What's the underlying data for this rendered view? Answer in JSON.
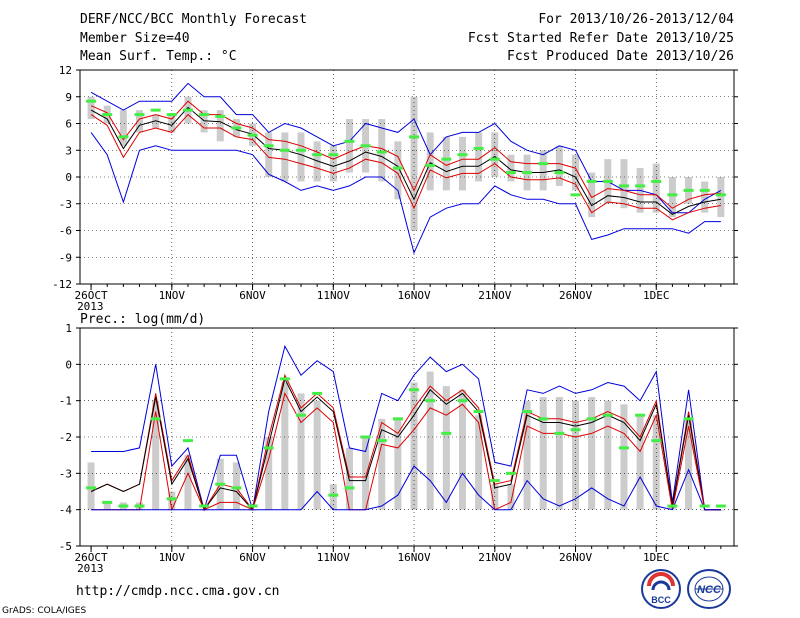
{
  "header": {
    "title": "DERF/NCC/BCC Monthly Forecast",
    "member_size": "Member Size=40",
    "variable": "Mean Surf. Temp.: °C",
    "period": "For 2013/10/26-2013/12/04",
    "started": "Fcst Started Refer Date 2013/10/25",
    "produced": "Fcst Produced Date 2013/10/26"
  },
  "footer": {
    "url": "http://cmdp.ncc.cma.gov.cn",
    "grads": "GrADS: COLA/IGES",
    "logo_left": "BCC",
    "logo_right": "NCC"
  },
  "colors": {
    "envelope": "#0000dd",
    "spread": "#dd0000",
    "mean": "#000000",
    "box": "#cccccc",
    "obs_marker": "#44ee44"
  },
  "chart_data": [
    {
      "type": "box",
      "title": "Mean Surf. Temp.: °C",
      "x_labels": [
        "26OCT",
        "1NOV",
        "6NOV",
        "11NOV",
        "16NOV",
        "21NOV",
        "26NOV",
        "1DEC"
      ],
      "x_label_index": [
        0,
        5,
        10,
        15,
        20,
        25,
        30,
        35
      ],
      "year_label": "2013",
      "ylim": [
        -12,
        12
      ],
      "yticks": [
        12,
        9,
        6,
        3,
        0,
        -3,
        -6,
        -9,
        -12
      ],
      "grid": true,
      "series": [
        {
          "name": "max",
          "values": [
            9.5,
            8.5,
            7.5,
            8.5,
            8.5,
            8.5,
            10.5,
            9,
            9,
            7,
            7,
            5,
            6,
            5.5,
            4.5,
            3.5,
            4,
            6,
            5.5,
            5,
            6.5,
            2.5,
            4.5,
            5,
            5,
            6,
            4,
            3,
            2.5,
            3.5,
            3,
            -0.5,
            -0.5,
            -1.5,
            -1.5,
            -2,
            -4,
            -4,
            -2.5,
            -1.5
          ]
        },
        {
          "name": "upper",
          "values": [
            8,
            7.2,
            4.2,
            6.5,
            7,
            6.5,
            8.5,
            7,
            7,
            6,
            5.5,
            4.2,
            4,
            3.5,
            2.8,
            2,
            2.8,
            3.5,
            3.2,
            2.3,
            -1.5,
            2.5,
            1.3,
            2,
            2,
            3.3,
            1.7,
            1.5,
            1.5,
            1.5,
            1,
            -2.3,
            -1.3,
            -1.5,
            -2,
            -2,
            -3.5,
            -2.5,
            -2,
            -1.8
          ]
        },
        {
          "name": "mean",
          "values": [
            7.5,
            6.5,
            3.2,
            5.8,
            6.3,
            5.8,
            7.8,
            6.3,
            6.2,
            5.3,
            4.8,
            3.2,
            3,
            2.5,
            1.8,
            1.2,
            1.8,
            2.8,
            2.3,
            1.2,
            -2.5,
            1.6,
            0.6,
            1.2,
            1.2,
            2.3,
            0.8,
            0.5,
            0.5,
            0.8,
            0,
            -3.2,
            -2.1,
            -2.3,
            -2.8,
            -2.8,
            -4.2,
            -3.3,
            -2.8,
            -2.5
          ]
        },
        {
          "name": "lower",
          "values": [
            7,
            5.8,
            2.2,
            5,
            5.5,
            5,
            7,
            5.5,
            5.5,
            4.5,
            4.2,
            2.2,
            2,
            1.5,
            1,
            0.4,
            1,
            2,
            1.6,
            0.4,
            -3.5,
            0.8,
            -0.1,
            0.4,
            0.4,
            1.5,
            0,
            -0.3,
            -0.3,
            -0.1,
            -0.8,
            -4,
            -2.8,
            -3,
            -3.5,
            -3.5,
            -4.8,
            -4,
            -3.5,
            -3.2
          ]
        },
        {
          "name": "min",
          "values": [
            5,
            2.5,
            -2.8,
            3,
            3.5,
            3,
            3,
            3,
            3,
            3,
            2.5,
            0.3,
            -0.5,
            -1.5,
            -1,
            -1.5,
            -1,
            0,
            0,
            -1.5,
            -8.5,
            -4.5,
            -3.5,
            -3,
            -3,
            -1,
            -2,
            -2.5,
            -2.5,
            -3,
            -3,
            -7,
            -6.5,
            -5.8,
            -5.8,
            -5.8,
            -5.8,
            -6.3,
            -5,
            -5
          ]
        },
        {
          "name": "observed",
          "values": [
            8.5,
            7,
            4.5,
            7,
            7.5,
            7,
            7.5,
            7,
            6.8,
            5.5,
            4.7,
            3.5,
            3,
            3,
            2.5,
            2.5,
            4,
            3.5,
            2.8,
            1,
            4.5,
            1.3,
            2,
            2.5,
            3.2,
            2,
            0.5,
            0.5,
            1.5,
            0.5,
            -2,
            -0.5,
            -0.5,
            -1,
            -1,
            -0.5,
            -2,
            -1.5,
            -1.5,
            -2
          ]
        }
      ],
      "boxes": [
        [
          6.5,
          9
        ],
        [
          6,
          8
        ],
        [
          3.5,
          7.5
        ],
        [
          5,
          7.5
        ],
        [
          5.5,
          7
        ],
        [
          5,
          7
        ],
        [
          6,
          9
        ],
        [
          5,
          7.5
        ],
        [
          4,
          7.5
        ],
        [
          4.5,
          6.5
        ],
        [
          3.5,
          6
        ],
        [
          0,
          5
        ],
        [
          -0.5,
          5
        ],
        [
          -0.5,
          5
        ],
        [
          -0.5,
          4
        ],
        [
          -0.5,
          3.5
        ],
        [
          0.5,
          6.5
        ],
        [
          0.5,
          6.5
        ],
        [
          -0.5,
          6.5
        ],
        [
          -2.5,
          4
        ],
        [
          -6,
          9
        ],
        [
          -1.5,
          5
        ],
        [
          -1.5,
          4.5
        ],
        [
          -1.5,
          4.5
        ],
        [
          -0.5,
          5
        ],
        [
          0,
          5
        ],
        [
          -0.5,
          2.5
        ],
        [
          -1.5,
          2.5
        ],
        [
          -1.5,
          3
        ],
        [
          -1,
          3.5
        ],
        [
          -1.5,
          2.5
        ],
        [
          -4.5,
          0.5
        ],
        [
          -3,
          2
        ],
        [
          -3.5,
          2
        ],
        [
          -4,
          1
        ],
        [
          -4,
          1.5
        ],
        [
          -4.5,
          0
        ],
        [
          -3,
          0
        ],
        [
          -4,
          -0.5
        ],
        [
          -4.5,
          0
        ]
      ]
    },
    {
      "type": "box",
      "title": "Prec.: log(mm/d)",
      "x_labels": [
        "26OCT",
        "1NOV",
        "6NOV",
        "11NOV",
        "16NOV",
        "21NOV",
        "26NOV",
        "1DEC"
      ],
      "x_label_index": [
        0,
        5,
        10,
        15,
        20,
        25,
        30,
        35
      ],
      "year_label": "2013",
      "ylim": [
        -5,
        1
      ],
      "yticks": [
        1,
        0,
        -1,
        -2,
        -3,
        -4,
        -5
      ],
      "grid": true,
      "series": [
        {
          "name": "max",
          "values": [
            -2.4,
            -2.4,
            -2.4,
            -2.3,
            0,
            -2.8,
            -2.3,
            -4,
            -2.5,
            -2.5,
            -4,
            -1.3,
            0.5,
            -0.3,
            0.1,
            -0.2,
            -2.3,
            -2.4,
            -0.8,
            -1,
            -0.3,
            0.2,
            -0.2,
            0,
            -0.4,
            -2.7,
            -2.8,
            -0.7,
            -0.8,
            -0.6,
            -0.8,
            -0.7,
            -0.5,
            -0.6,
            -1,
            -0.2,
            -3.8,
            -0.7,
            -4,
            -4
          ]
        },
        {
          "name": "upper",
          "values": [
            -3.5,
            -3.3,
            -3.5,
            -3.3,
            -0.8,
            -3.2,
            -2.5,
            -4,
            -3.3,
            -3.4,
            -4,
            -2,
            -0.3,
            -1.2,
            -0.8,
            -1.2,
            -3.1,
            -3.1,
            -1.6,
            -1.9,
            -1.2,
            -0.6,
            -1,
            -0.7,
            -1.2,
            -3.3,
            -3.2,
            -1.3,
            -1.5,
            -1.5,
            -1.6,
            -1.5,
            -1.3,
            -1.5,
            -2,
            -1,
            -3.9,
            -1.3,
            -4,
            -4
          ]
        },
        {
          "name": "mean",
          "values": [
            -3.5,
            -3.3,
            -3.5,
            -3.3,
            -0.9,
            -3.3,
            -2.6,
            -4,
            -3.4,
            -3.5,
            -4,
            -2.2,
            -0.4,
            -1.3,
            -0.9,
            -1.3,
            -3.2,
            -3.2,
            -1.8,
            -2,
            -1.4,
            -0.7,
            -1.1,
            -0.8,
            -1.3,
            -3.4,
            -3.3,
            -1.4,
            -1.6,
            -1.6,
            -1.7,
            -1.6,
            -1.4,
            -1.6,
            -2.1,
            -1.1,
            -3.9,
            -1.4,
            -4,
            -4
          ]
        },
        {
          "name": "lower",
          "values": [
            -4,
            -4,
            -4,
            -4,
            -1.3,
            -4,
            -3,
            -4,
            -3.8,
            -3.8,
            -4,
            -2.6,
            -0.8,
            -1.6,
            -1.2,
            -1.6,
            -4,
            -4,
            -2.2,
            -2.3,
            -1.8,
            -1.2,
            -1.4,
            -1.1,
            -1.6,
            -4,
            -3.8,
            -1.7,
            -1.9,
            -1.9,
            -2,
            -1.9,
            -1.7,
            -1.9,
            -2.4,
            -1.4,
            -4,
            -1.7,
            -4,
            -4
          ]
        },
        {
          "name": "min",
          "values": [
            -4,
            -4,
            -4,
            -4,
            -4,
            -4,
            -4,
            -4,
            -4,
            -4,
            -4,
            -4,
            -4,
            -4,
            -3.5,
            -4,
            -4,
            -4,
            -3.9,
            -3.6,
            -2.8,
            -3.2,
            -3.8,
            -3,
            -3.6,
            -4,
            -4,
            -3.2,
            -3.7,
            -3.9,
            -3.7,
            -3.4,
            -3.7,
            -3.9,
            -3.1,
            -3.9,
            -4,
            -2.9,
            -4,
            -4
          ]
        },
        {
          "name": "observed",
          "values": [
            -3.4,
            -3.8,
            -3.9,
            -3.9,
            -1.5,
            -3.7,
            -2.1,
            -3.9,
            -3.3,
            -3.4,
            -3.9,
            -2.3,
            -0.4,
            -1.4,
            -0.8,
            -3.6,
            -3.4,
            -2,
            -2.1,
            -1.5,
            -0.7,
            -1,
            -1.9,
            -1,
            -1.3,
            -3.2,
            -3,
            -1.3,
            -1.5,
            -1.9,
            -1.8,
            -1.5,
            -1.4,
            -2.3,
            -1.4,
            -2.1,
            -3.9,
            -1.5,
            -3.9,
            -3.9
          ]
        }
      ],
      "boxes": [
        [
          -4,
          -2.7
        ],
        [
          -4,
          -3.8
        ],
        [
          -4,
          -3.8
        ],
        [
          -4,
          -3.8
        ],
        [
          -4,
          -1
        ],
        [
          -4,
          -3.5
        ],
        [
          -4,
          -2.5
        ],
        [
          -4,
          -4
        ],
        [
          -4,
          -2.6
        ],
        [
          -4,
          -2.7
        ],
        [
          -4,
          -4
        ],
        [
          -4,
          -2
        ],
        [
          -4,
          -0.5
        ],
        [
          -4,
          -0.8
        ],
        [
          -4,
          -1
        ],
        [
          -4,
          -3.3
        ],
        [
          -4,
          -2.3
        ],
        [
          -4,
          -2
        ],
        [
          -4,
          -1.5
        ],
        [
          -4,
          -1.5
        ],
        [
          -4,
          -0.5
        ],
        [
          -4,
          -0.2
        ],
        [
          -4,
          -0.6
        ],
        [
          -4,
          -0.7
        ],
        [
          -4,
          -1.4
        ],
        [
          -4,
          -3.3
        ],
        [
          -4,
          -3.3
        ],
        [
          -4,
          -1
        ],
        [
          -4,
          -0.9
        ],
        [
          -4,
          -0.9
        ],
        [
          -4,
          -1
        ],
        [
          -4,
          -0.9
        ],
        [
          -4,
          -1
        ],
        [
          -4,
          -1.1
        ],
        [
          -4,
          -1.4
        ],
        [
          -4,
          -1.4
        ],
        [
          -4,
          -3.9
        ],
        [
          -4,
          -1.5
        ],
        [
          -4,
          -4
        ],
        [
          -4,
          -4
        ]
      ]
    }
  ]
}
